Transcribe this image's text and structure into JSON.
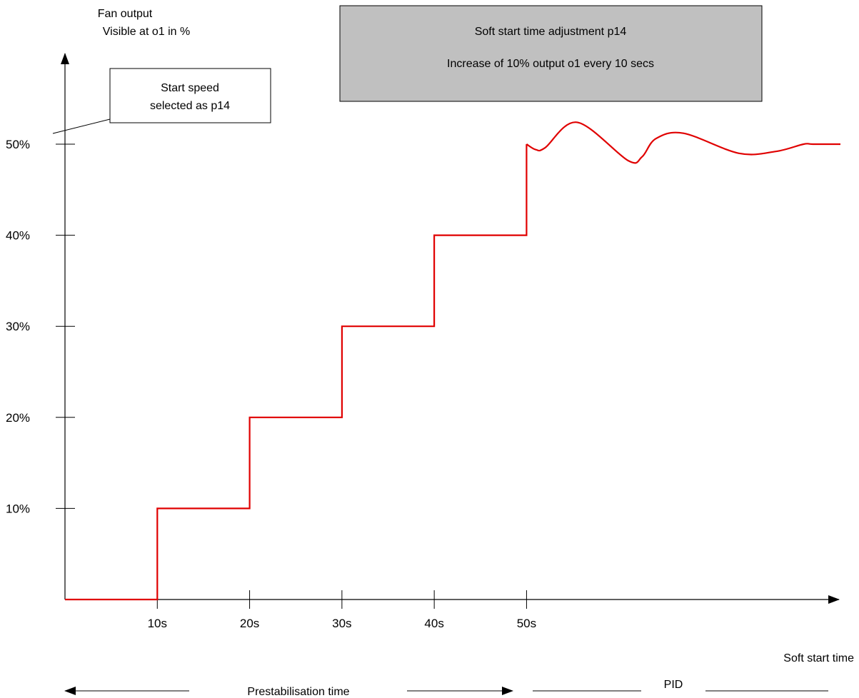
{
  "chart_data": {
    "type": "line",
    "title": "",
    "ylabel_lines": [
      "Fan output",
      "Visible at o1 in %"
    ],
    "xlabel": "Soft start time",
    "x_ticks": [
      "10s",
      "20s",
      "30s",
      "40s",
      "50s"
    ],
    "y_ticks": [
      "10%",
      "20%",
      "30%",
      "40%",
      "50%"
    ],
    "xlim": [
      0,
      84
    ],
    "ylim": [
      0,
      50
    ],
    "grid": false,
    "series": [
      {
        "color": "#e00000",
        "step_values": {
          "x": [
            0,
            10,
            10,
            20,
            20,
            30,
            30,
            40,
            40,
            50,
            50
          ],
          "y": [
            0,
            0,
            10,
            10,
            20,
            20,
            30,
            30,
            40,
            40,
            50
          ]
        },
        "oscillation_values": {
          "x": [
            50,
            51,
            52,
            55.5,
            61,
            62.5,
            64,
            67,
            73,
            77,
            80,
            81,
            84
          ],
          "y": [
            50,
            49.4,
            49.6,
            52.4,
            48.2,
            48.6,
            50.6,
            51.2,
            49.0,
            49.2,
            50.0,
            50.0,
            50.0
          ]
        }
      }
    ],
    "annotations": {
      "info_box": {
        "line1": "Soft start time adjustment p14",
        "line2": "Increase of 10% output o1 every 10 secs"
      },
      "callout": {
        "line1": "Start speed",
        "line2": "selected as p14"
      },
      "phase_prestabilisation": "Prestabilisation time",
      "phase_pid": "PID"
    }
  }
}
